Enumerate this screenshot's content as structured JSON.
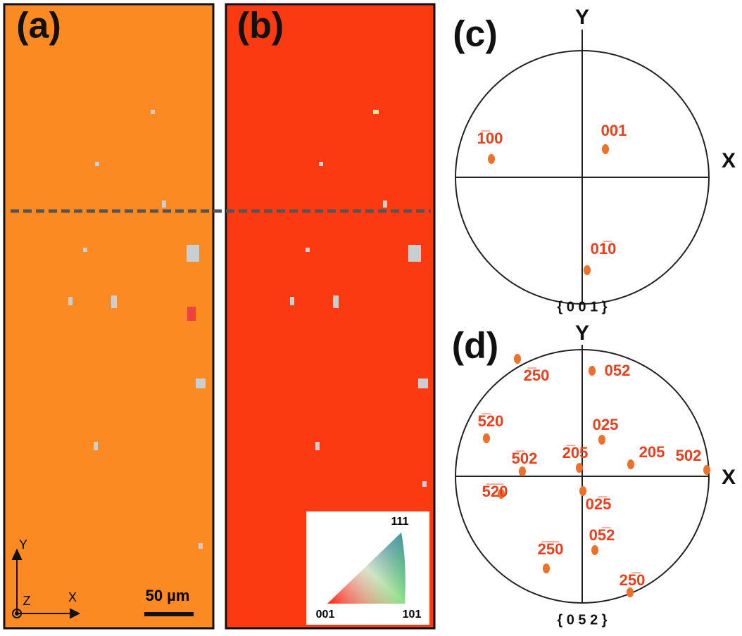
{
  "panels": {
    "a": {
      "label": "(a)",
      "scale_bar": "50 µm",
      "axes": {
        "y": "Y",
        "z": "Z",
        "x": "X"
      }
    },
    "b": {
      "label": "(b)",
      "ipf_legend": {
        "corner_001": "001",
        "corner_101": "101",
        "corner_111": "111"
      }
    },
    "c": {
      "label": "(c)",
      "axis_y": "Y",
      "axis_x": "X",
      "projection": "{ 0 0 1 }",
      "poles": [
        "1̅00",
        "001",
        "01̅0"
      ]
    },
    "d": {
      "label": "(d)",
      "axis_y": "Y",
      "axis_x": "X",
      "projection": "{ 0 5 2 }",
      "poles": [
        "2̅50",
        "052",
        "5̅20",
        "025",
        "5̅02",
        "2̅05",
        "205",
        "502",
        "5̅2̅0",
        "02̅5",
        "05̅2",
        "2̅5̅0",
        "25̅0"
      ]
    }
  }
}
